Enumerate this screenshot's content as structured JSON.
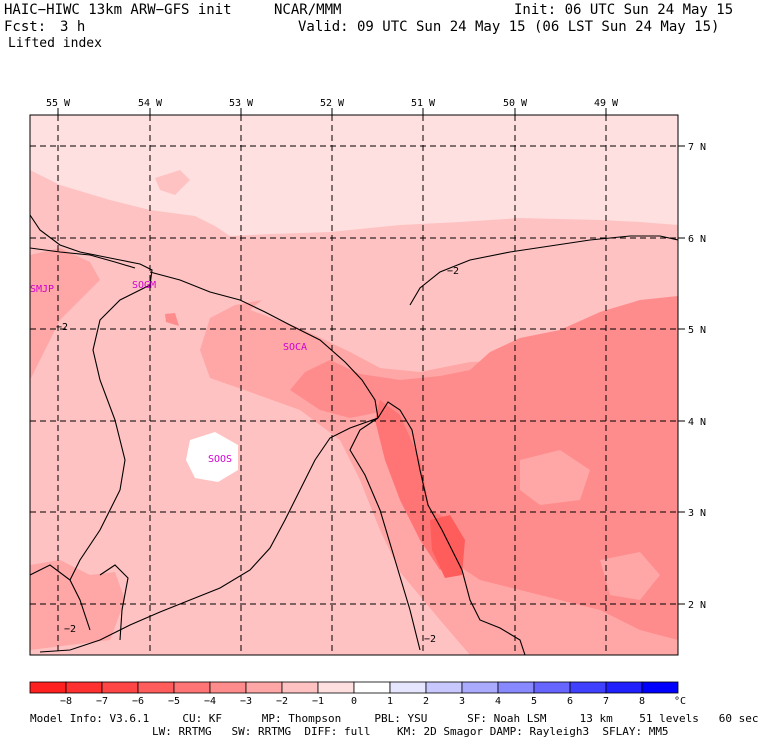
{
  "header": {
    "model": "HAIC−HIWC 13km ARW−GFS init",
    "center": "NCAR/MMM",
    "init": "Init: 06 UTC Sun 24 May 15",
    "fcst_label": "Fcst:",
    "fcst_value": "3 h",
    "valid": "Valid: 09 UTC Sun 24 May 15 (06 LST Sun 24 May 15)",
    "field": "Lifted index"
  },
  "map": {
    "lon_labels": [
      "55 W",
      "54 W",
      "53 W",
      "52 W",
      "51 W",
      "50 W",
      "49 W"
    ],
    "lat_labels": [
      "7 N",
      "6 N",
      "5 N",
      "4 N",
      "3 N",
      "2 N"
    ],
    "stations": [
      "SMJP",
      "SOGM",
      "SOCA",
      "SOOS"
    ],
    "contour_labels": [
      "−2",
      "−2",
      "−2",
      "−2"
    ]
  },
  "colorbar": {
    "ticks": [
      "−8",
      "−7",
      "−6",
      "−5",
      "−4",
      "−3",
      "−2",
      "−1",
      "0",
      "1",
      "2",
      "3",
      "4",
      "5",
      "6",
      "7",
      "8"
    ],
    "unit": "°C",
    "colors": [
      "#ff2020",
      "#ff3030",
      "#ff4646",
      "#ff5c5c",
      "#ff7474",
      "#ff8c8c",
      "#ffa6a6",
      "#ffc2c2",
      "#ffe0e0",
      "#ffffff",
      "#e6e6ff",
      "#c8c8ff",
      "#aaaaff",
      "#8888ff",
      "#6666ff",
      "#4040ff",
      "#2020ff",
      "#0000ff"
    ]
  },
  "footer": {
    "line1": "Model Info: V3.6.1     CU: KF      MP: Thompson     PBL: YSU      SF: Noah LSM     13 km    51 levels   60 sec",
    "line2": "LW: RRTMG   SW: RRTMG  DIFF: full    KM: 2D Smagor DAMP: Rayleigh3  SFLAY: MM5"
  }
}
